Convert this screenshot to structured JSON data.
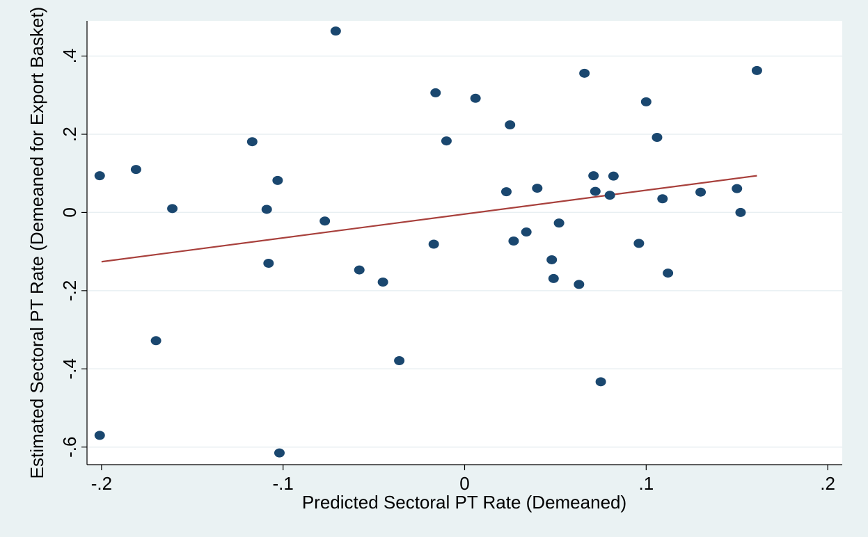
{
  "chart_data": {
    "type": "scatter",
    "xlabel": "Predicted Sectoral PT Rate (Demeaned)",
    "ylabel": "Estimated Sectoral PT Rate (Demeaned for Export Basket)",
    "xlim": [
      -0.208,
      0.208
    ],
    "ylim": [
      -0.645,
      0.49
    ],
    "x_ticks": [
      {
        "value": -0.2,
        "label": "-.2"
      },
      {
        "value": -0.1,
        "label": "-.1"
      },
      {
        "value": 0,
        "label": "0"
      },
      {
        "value": 0.1,
        "label": ".1"
      },
      {
        "value": 0.2,
        "label": ".2"
      }
    ],
    "y_ticks": [
      {
        "value": -0.6,
        "label": "-.6"
      },
      {
        "value": -0.4,
        "label": "-.4"
      },
      {
        "value": -0.2,
        "label": "-.2"
      },
      {
        "value": 0,
        "label": "0"
      },
      {
        "value": 0.2,
        "label": ".2"
      },
      {
        "value": 0.4,
        "label": ".4"
      }
    ],
    "grid": "horizontal",
    "colors": {
      "points": "#1a476f",
      "fit_line": "#a8403c",
      "grid": "#e8eff2",
      "axis": "#000000"
    },
    "points": [
      {
        "x": -0.201,
        "y": 0.094
      },
      {
        "x": -0.201,
        "y": -0.57
      },
      {
        "x": -0.181,
        "y": 0.11
      },
      {
        "x": -0.17,
        "y": -0.328
      },
      {
        "x": -0.161,
        "y": 0.01
      },
      {
        "x": -0.117,
        "y": 0.181
      },
      {
        "x": -0.109,
        "y": 0.008
      },
      {
        "x": -0.108,
        "y": -0.13
      },
      {
        "x": -0.103,
        "y": 0.082
      },
      {
        "x": -0.102,
        "y": -0.615
      },
      {
        "x": -0.077,
        "y": -0.022
      },
      {
        "x": -0.071,
        "y": 0.464
      },
      {
        "x": -0.058,
        "y": -0.147
      },
      {
        "x": -0.045,
        "y": -0.178
      },
      {
        "x": -0.036,
        "y": -0.379
      },
      {
        "x": -0.017,
        "y": -0.081
      },
      {
        "x": -0.016,
        "y": 0.306
      },
      {
        "x": -0.01,
        "y": 0.183
      },
      {
        "x": 0.006,
        "y": 0.292
      },
      {
        "x": 0.023,
        "y": 0.053
      },
      {
        "x": 0.025,
        "y": 0.224
      },
      {
        "x": 0.027,
        "y": -0.073
      },
      {
        "x": 0.034,
        "y": -0.05
      },
      {
        "x": 0.04,
        "y": 0.062
      },
      {
        "x": 0.048,
        "y": -0.121
      },
      {
        "x": 0.049,
        "y": -0.169
      },
      {
        "x": 0.052,
        "y": -0.027
      },
      {
        "x": 0.063,
        "y": -0.184
      },
      {
        "x": 0.066,
        "y": 0.356
      },
      {
        "x": 0.071,
        "y": 0.094
      },
      {
        "x": 0.072,
        "y": 0.054
      },
      {
        "x": 0.075,
        "y": -0.433
      },
      {
        "x": 0.08,
        "y": 0.044
      },
      {
        "x": 0.082,
        "y": 0.093
      },
      {
        "x": 0.096,
        "y": -0.079
      },
      {
        "x": 0.1,
        "y": 0.283
      },
      {
        "x": 0.106,
        "y": 0.192
      },
      {
        "x": 0.109,
        "y": 0.035
      },
      {
        "x": 0.112,
        "y": -0.155
      },
      {
        "x": 0.13,
        "y": 0.052
      },
      {
        "x": 0.15,
        "y": 0.061
      },
      {
        "x": 0.152,
        "y": 0.0
      },
      {
        "x": 0.161,
        "y": 0.363
      }
    ],
    "fit_line": {
      "x": [
        -0.2,
        0.161
      ],
      "y": [
        -0.126,
        0.094
      ]
    }
  }
}
